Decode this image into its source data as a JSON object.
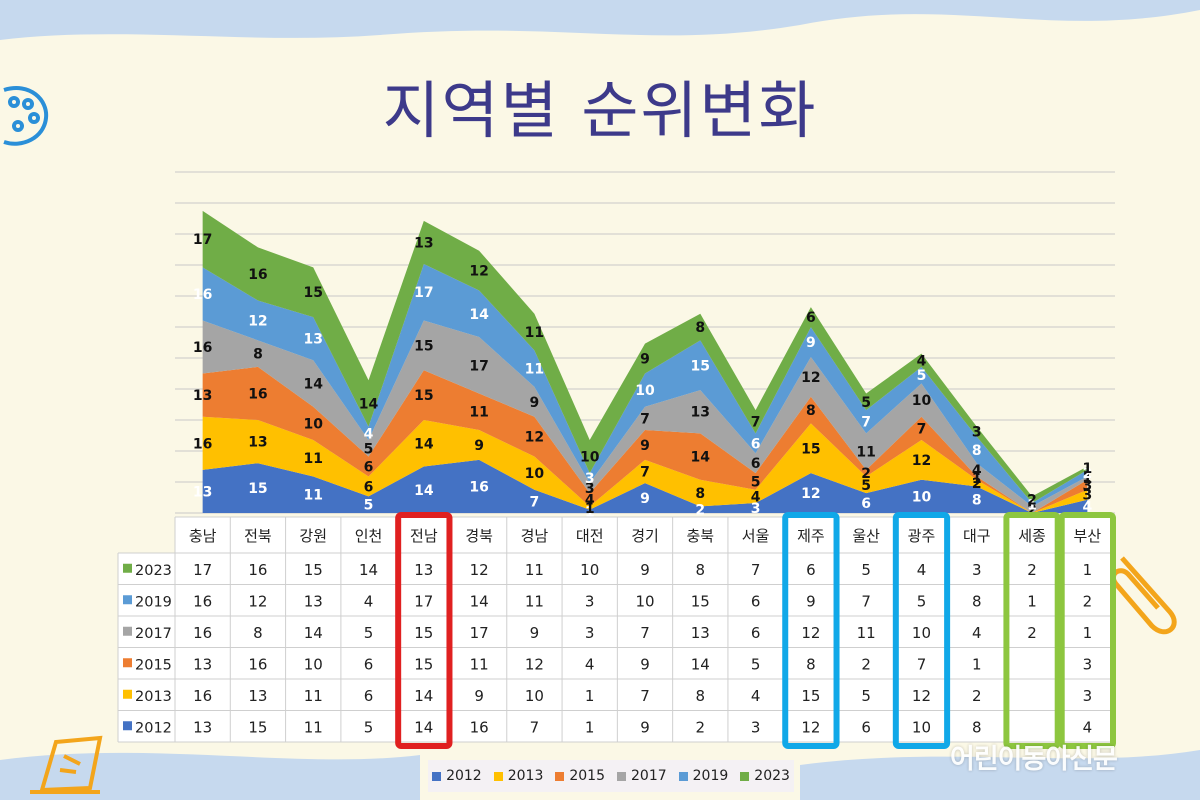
{
  "title": "지역별 순위변화",
  "colors": {
    "2012": "#4472c4",
    "2013": "#ffc000",
    "2015": "#ed7d31",
    "2017": "#a5a5a5",
    "2019": "#5b9bd5",
    "2023": "#70ad47"
  },
  "chart_data": {
    "type": "area",
    "categories": [
      "충남",
      "전북",
      "강원",
      "인천",
      "전남",
      "경북",
      "경남",
      "대전",
      "경기",
      "충북",
      "서울",
      "제주",
      "울산",
      "광주",
      "대구",
      "세종",
      "부산"
    ],
    "series": [
      {
        "name": "2012",
        "values": [
          13,
          15,
          11,
          5,
          14,
          16,
          7,
          1,
          9,
          2,
          3,
          12,
          6,
          10,
          8,
          null,
          4
        ]
      },
      {
        "name": "2013",
        "values": [
          16,
          13,
          11,
          6,
          14,
          9,
          10,
          1,
          7,
          8,
          4,
          15,
          5,
          12,
          2,
          null,
          3
        ]
      },
      {
        "name": "2015",
        "values": [
          13,
          16,
          10,
          6,
          15,
          11,
          12,
          4,
          9,
          14,
          5,
          8,
          2,
          7,
          1,
          null,
          3
        ]
      },
      {
        "name": "2017",
        "values": [
          16,
          8,
          14,
          5,
          15,
          17,
          9,
          3,
          7,
          13,
          6,
          12,
          11,
          10,
          4,
          2,
          1
        ]
      },
      {
        "name": "2019",
        "values": [
          16,
          12,
          13,
          4,
          17,
          14,
          11,
          3,
          10,
          15,
          6,
          9,
          7,
          5,
          8,
          1,
          2
        ]
      },
      {
        "name": "2023",
        "values": [
          17,
          16,
          15,
          14,
          13,
          12,
          11,
          10,
          9,
          8,
          7,
          6,
          5,
          4,
          3,
          2,
          1
        ]
      }
    ],
    "stacked": true,
    "grid": true,
    "legend": "bottom",
    "highlights": [
      {
        "categories": [
          "전남"
        ],
        "color": "#e02020"
      },
      {
        "categories": [
          "제주"
        ],
        "color": "#10a8e8"
      },
      {
        "categories": [
          "광주"
        ],
        "color": "#10a8e8"
      },
      {
        "categories": [
          "세종"
        ],
        "color": "#8dc63f"
      },
      {
        "categories": [
          "부산"
        ],
        "color": "#8dc63f"
      }
    ]
  },
  "watermark": "어린이동아신문"
}
